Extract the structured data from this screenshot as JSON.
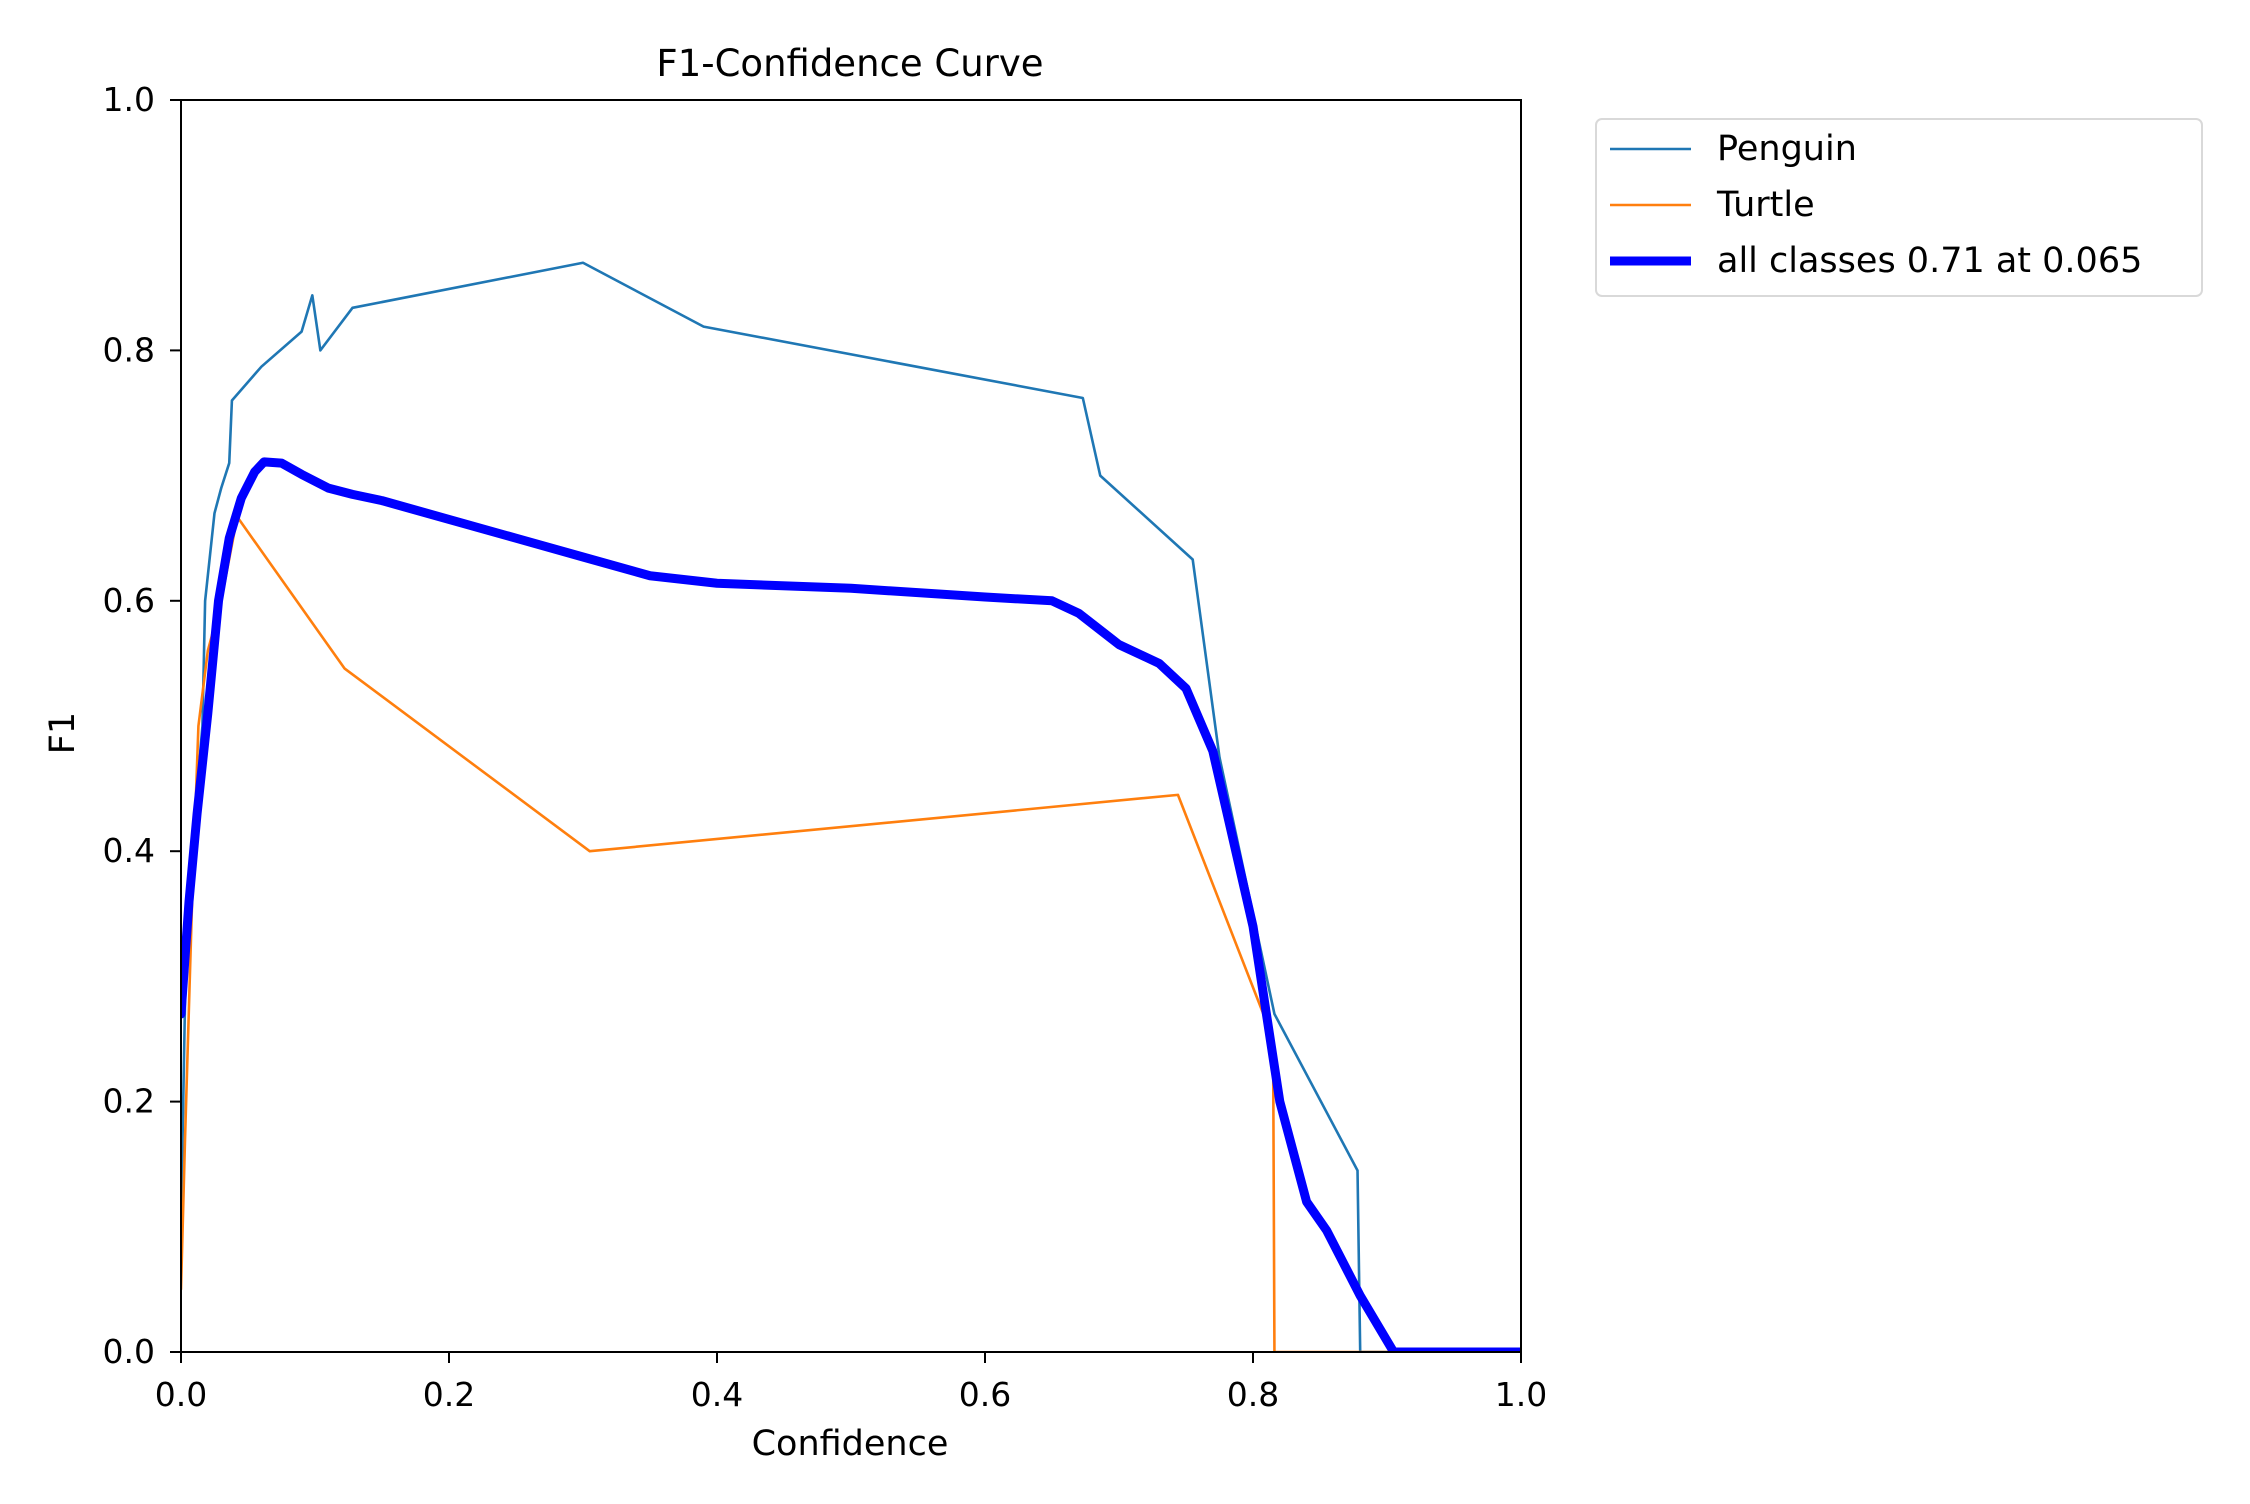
{
  "chart_data": {
    "type": "line",
    "title": "F1-Confidence Curve",
    "xlabel": "Confidence",
    "ylabel": "F1",
    "xlim": [
      0,
      1
    ],
    "ylim": [
      0,
      1
    ],
    "xticks": [
      "0.0",
      "0.2",
      "0.4",
      "0.6",
      "0.8",
      "1.0"
    ],
    "yticks": [
      "0.0",
      "0.2",
      "0.4",
      "0.6",
      "0.8",
      "1.0"
    ],
    "grid": false,
    "legend_position": "outside top-right",
    "series": [
      {
        "name": "Penguin",
        "color": "#1f77b4",
        "emphasis": "thin",
        "points": [
          [
            0.0,
            0.1
          ],
          [
            0.003,
            0.28
          ],
          [
            0.007,
            0.38
          ],
          [
            0.012,
            0.45
          ],
          [
            0.016,
            0.5
          ],
          [
            0.018,
            0.6
          ],
          [
            0.022,
            0.64
          ],
          [
            0.025,
            0.67
          ],
          [
            0.03,
            0.69
          ],
          [
            0.036,
            0.71
          ],
          [
            0.038,
            0.76
          ],
          [
            0.06,
            0.787
          ],
          [
            0.09,
            0.815
          ],
          [
            0.098,
            0.844
          ],
          [
            0.104,
            0.8
          ],
          [
            0.128,
            0.834
          ],
          [
            0.3,
            0.87
          ],
          [
            0.39,
            0.819
          ],
          [
            0.673,
            0.762
          ],
          [
            0.686,
            0.7
          ],
          [
            0.755,
            0.633
          ],
          [
            0.775,
            0.475
          ],
          [
            0.816,
            0.27
          ],
          [
            0.878,
            0.145
          ],
          [
            0.88,
            0.0
          ],
          [
            1.0,
            0.0
          ]
        ]
      },
      {
        "name": "Turtle",
        "color": "#ff7f0e",
        "emphasis": "thin",
        "points": [
          [
            0.0,
            0.05
          ],
          [
            0.003,
            0.17
          ],
          [
            0.008,
            0.35
          ],
          [
            0.013,
            0.5
          ],
          [
            0.02,
            0.56
          ],
          [
            0.03,
            0.6
          ],
          [
            0.042,
            0.667
          ],
          [
            0.122,
            0.546
          ],
          [
            0.305,
            0.4
          ],
          [
            0.744,
            0.445
          ],
          [
            0.815,
            0.25
          ],
          [
            0.816,
            0.0
          ],
          [
            1.0,
            0.0
          ]
        ]
      },
      {
        "name": "all classes 0.71 at 0.065",
        "color": "#0000ff",
        "emphasis": "bold",
        "points": [
          [
            0.0,
            0.27
          ],
          [
            0.006,
            0.36
          ],
          [
            0.012,
            0.43
          ],
          [
            0.02,
            0.51
          ],
          [
            0.028,
            0.6
          ],
          [
            0.036,
            0.65
          ],
          [
            0.045,
            0.682
          ],
          [
            0.055,
            0.703
          ],
          [
            0.062,
            0.711
          ],
          [
            0.075,
            0.71
          ],
          [
            0.09,
            0.701
          ],
          [
            0.11,
            0.69
          ],
          [
            0.128,
            0.685
          ],
          [
            0.15,
            0.68
          ],
          [
            0.2,
            0.665
          ],
          [
            0.25,
            0.65
          ],
          [
            0.3,
            0.635
          ],
          [
            0.35,
            0.62
          ],
          [
            0.4,
            0.614
          ],
          [
            0.5,
            0.61
          ],
          [
            0.6,
            0.603
          ],
          [
            0.65,
            0.6
          ],
          [
            0.67,
            0.59
          ],
          [
            0.7,
            0.565
          ],
          [
            0.73,
            0.55
          ],
          [
            0.75,
            0.53
          ],
          [
            0.77,
            0.48
          ],
          [
            0.8,
            0.34
          ],
          [
            0.82,
            0.2
          ],
          [
            0.84,
            0.12
          ],
          [
            0.855,
            0.097
          ],
          [
            0.88,
            0.045
          ],
          [
            0.905,
            0.0
          ],
          [
            1.0,
            0.0
          ]
        ]
      }
    ]
  }
}
